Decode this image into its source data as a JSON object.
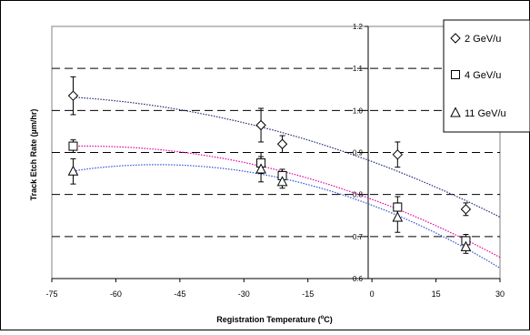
{
  "chart_data": {
    "type": "scatter",
    "xlabel": "Registration Temperature (",
    "xlabel_sup": "o",
    "xlabel_tail": "C)",
    "ylabel": "Track Etch Rate (µm/hr)",
    "xlim": [
      -75,
      30
    ],
    "ylim": [
      0.6,
      1.2
    ],
    "x_ticks": [
      "-75",
      "-60",
      "-45",
      "-30",
      "-15",
      "0",
      "15",
      "30"
    ],
    "y_ticks": [
      "0.6",
      "0.7",
      "0.8",
      "0.9",
      "1.0",
      "1.1",
      "1.2"
    ],
    "grid": "dashed horizontal",
    "legend_position": "top-right",
    "series": [
      {
        "name": "2 GeV/u",
        "marker": "diamond",
        "x": [
          -70,
          -26,
          -21,
          6,
          22
        ],
        "y": [
          1.035,
          0.965,
          0.92,
          0.895,
          0.765
        ],
        "err": [
          0.045,
          0.04,
          0.02,
          0.03,
          0.015
        ],
        "trend_color": "#1f2a70"
      },
      {
        "name": "4 GeV/u",
        "marker": "square",
        "x": [
          -70,
          -26,
          -21,
          6,
          22
        ],
        "y": [
          0.915,
          0.875,
          0.845,
          0.77,
          0.69
        ],
        "err": [
          0.015,
          0.025,
          0.015,
          0.025,
          0.015
        ],
        "trend_color": "#e000a0"
      },
      {
        "name": "11 GeV/u",
        "marker": "triangle",
        "x": [
          -70,
          -26,
          -21,
          6,
          22
        ],
        "y": [
          0.855,
          0.86,
          0.83,
          0.745,
          0.675
        ],
        "err": [
          0.03,
          0.03,
          0.015,
          0.035,
          0.015
        ],
        "trend_color": "#3050d8"
      }
    ]
  }
}
